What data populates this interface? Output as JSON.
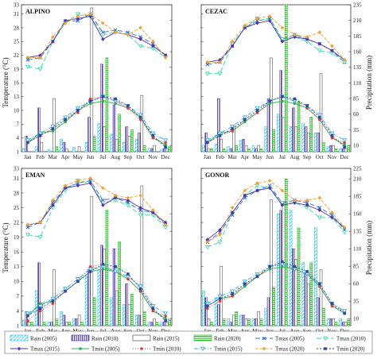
{
  "figure": {
    "y_left_label": "Temperature (°C)",
    "y_right_label": "Precipitation (mm)"
  },
  "legend": [
    {
      "label": "Rain (2005)",
      "kind": "bar",
      "color": "#29c6e6",
      "pattern": "diag"
    },
    {
      "label": "Rain (2010)",
      "kind": "bar",
      "color": "#5a3fb0",
      "pattern": "vert"
    },
    {
      "label": "Rain (2015)",
      "kind": "bar",
      "color": "#555555",
      "pattern": "solid-outline"
    },
    {
      "label": "Rain (2020)",
      "kind": "bar",
      "color": "#2dbb2d",
      "pattern": "horiz"
    },
    {
      "label": "Tmax (2005)",
      "kind": "line",
      "color": "#2f6ad0",
      "dash": "6,3",
      "marker": "x"
    },
    {
      "label": "Tmax (2010)",
      "kind": "line",
      "color": "#2fd6a8",
      "dash": "6,3",
      "marker": "tri"
    },
    {
      "label": "Tmax (2015)",
      "kind": "line",
      "color": "#5030a0",
      "dash": "",
      "marker": "diamond"
    },
    {
      "label": "Tmin (2005)",
      "kind": "line",
      "color": "#29b04a",
      "dash": "",
      "marker": "circle"
    },
    {
      "label": "Tmin (2010)",
      "kind": "line",
      "color": "#e43838",
      "dash": "1,2",
      "marker": "circle"
    },
    {
      "label": "Tmin (2015)",
      "kind": "line",
      "color": "#2aa8e6",
      "dash": "5,2,1,2",
      "marker": "tri"
    },
    {
      "label": "Tmax (2020)",
      "kind": "line",
      "color": "#f0a030",
      "dash": "4,2",
      "marker": "diamond"
    },
    {
      "label": "Tmin (2020)",
      "kind": "line",
      "color": "#2a4aa0",
      "dash": "2,2",
      "marker": "square"
    }
  ],
  "chart_data": [
    {
      "type": "bar",
      "title": "ALPINO",
      "categories": [
        "Jan",
        "Feb",
        "Mar",
        "Apr",
        "May",
        "Jun",
        "Jul",
        "Aug",
        "Sep",
        "Oct",
        "Nov",
        "Dec"
      ],
      "ylim_left": [
        1,
        33
      ],
      "left_ticks": [
        1,
        4,
        7,
        10,
        13,
        16,
        19,
        22,
        25,
        28,
        31,
        33
      ],
      "ylim_right": [
        0,
        235
      ],
      "right_ticks": [
        10,
        35,
        60,
        85,
        110,
        135,
        160,
        185,
        210,
        235
      ],
      "rain": [
        {
          "name": "Rain (2005)",
          "values": [
            5,
            8,
            3,
            20,
            7,
            15,
            45,
            28,
            15,
            20,
            5,
            3
          ]
        },
        {
          "name": "Rain (2010)",
          "values": [
            25,
            70,
            0,
            15,
            0,
            55,
            140,
            75,
            40,
            30,
            5,
            5
          ]
        },
        {
          "name": "Rain (2015)",
          "values": [
            0,
            15,
            85,
            5,
            8,
            230,
            40,
            20,
            25,
            90,
            10,
            5
          ]
        },
        {
          "name": "Rain (2020)",
          "values": [
            0,
            0,
            8,
            0,
            0,
            25,
            150,
            60,
            35,
            10,
            0,
            8
          ]
        }
      ],
      "temp": [
        {
          "name": "Tmax (2005)",
          "values": [
            21,
            21.5,
            25,
            29.5,
            29.5,
            31,
            27,
            27.5,
            27,
            26,
            24.5,
            22
          ]
        },
        {
          "name": "Tmax (2010)",
          "values": [
            19.5,
            19,
            25,
            29,
            31,
            30.5,
            26.5,
            27,
            26.5,
            24,
            23.5,
            21.5
          ]
        },
        {
          "name": "Tmax (2015)",
          "values": [
            21.5,
            22,
            25,
            29.5,
            30,
            30.5,
            25.5,
            27,
            26.5,
            25.5,
            24,
            22
          ]
        },
        {
          "name": "Tmax (2020)",
          "values": [
            21.5,
            21.5,
            26,
            29,
            30.5,
            31,
            29,
            27,
            26.5,
            28,
            25,
            21.5
          ]
        },
        {
          "name": "Tmin (2005)",
          "values": [
            3,
            5,
            5.5,
            7.5,
            10,
            11.5,
            12,
            11.5,
            10.5,
            8.5,
            4,
            2.5
          ]
        },
        {
          "name": "Tmin (2010)",
          "values": [
            3,
            4.5,
            6,
            8,
            9.5,
            12.5,
            13,
            12,
            10.5,
            8,
            4,
            3
          ]
        },
        {
          "name": "Tmin (2015)",
          "values": [
            3.5,
            5,
            6.5,
            8.5,
            10.5,
            12,
            13,
            12,
            11,
            9,
            5,
            3.5
          ]
        },
        {
          "name": "Tmin (2020)",
          "values": [
            3,
            4.5,
            6,
            8,
            10,
            12,
            13,
            12.5,
            11,
            8.5,
            4.5,
            2
          ]
        }
      ]
    },
    {
      "type": "bar",
      "title": "CEZAC",
      "categories": [
        "Jan",
        "Feb",
        "Mar",
        "Apr",
        "May",
        "Jun",
        "Jul",
        "Aug",
        "Sep",
        "Oct",
        "Nov",
        "Dec"
      ],
      "ylim_left": [
        1,
        33
      ],
      "left_ticks": [
        1,
        4,
        7,
        10,
        13,
        16,
        19,
        22,
        25,
        28,
        31,
        33
      ],
      "ylim_right": [
        0,
        235
      ],
      "right_ticks": [
        10,
        35,
        60,
        85,
        110,
        135,
        160,
        185,
        210,
        235
      ],
      "rain": [
        {
          "name": "Rain (2005)",
          "values": [
            10,
            12,
            8,
            18,
            10,
            40,
            60,
            40,
            45,
            30,
            8,
            5
          ]
        },
        {
          "name": "Rain (2010)",
          "values": [
            30,
            85,
            5,
            20,
            5,
            85,
            130,
            70,
            40,
            30,
            10,
            5
          ]
        },
        {
          "name": "Rain (2015)",
          "values": [
            5,
            20,
            40,
            10,
            10,
            150,
            55,
            40,
            30,
            125,
            10,
            5
          ]
        },
        {
          "name": "Rain (2020)",
          "values": [
            5,
            5,
            10,
            5,
            5,
            35,
            235,
            80,
            55,
            15,
            5,
            10
          ]
        }
      ],
      "temp": [
        {
          "name": "Tmax (2005)",
          "values": [
            20,
            20.5,
            24,
            28,
            29.5,
            30,
            25.5,
            26.5,
            25.5,
            24.5,
            23,
            20.5
          ]
        },
        {
          "name": "Tmax (2010)",
          "values": [
            18,
            18,
            24.5,
            28,
            30,
            29.5,
            25.5,
            26,
            25,
            23,
            22.5,
            20.5
          ]
        },
        {
          "name": "Tmax (2015)",
          "values": [
            20.5,
            21,
            24,
            28,
            29,
            29.5,
            25,
            26,
            25.5,
            24.5,
            23,
            21
          ]
        },
        {
          "name": "Tmax (2020)",
          "values": [
            20.5,
            20.5,
            25,
            28.5,
            30,
            30.5,
            28,
            26.5,
            26,
            27,
            24,
            21
          ]
        },
        {
          "name": "Tmin (2005)",
          "values": [
            3,
            5,
            5.5,
            7.5,
            9.5,
            11.5,
            12,
            11.5,
            10.5,
            8,
            4,
            2.5
          ]
        },
        {
          "name": "Tmin (2010)",
          "values": [
            3,
            4.5,
            5.5,
            8,
            9.5,
            12,
            13,
            12,
            10.5,
            8,
            4,
            3
          ]
        },
        {
          "name": "Tmin (2015)",
          "values": [
            3.5,
            5,
            6.5,
            8.5,
            10.5,
            12,
            13,
            12,
            11,
            9,
            5,
            3.5
          ]
        },
        {
          "name": "Tmin (2020)",
          "values": [
            3,
            4.5,
            6,
            8,
            10,
            12,
            13,
            12.5,
            11,
            8.5,
            4.5,
            2
          ]
        }
      ]
    },
    {
      "type": "bar",
      "title": "EMAN",
      "categories": [
        "Jan",
        "Feb",
        "Mar",
        "Apr",
        "May",
        "Jun",
        "Jul",
        "Aug",
        "Sep",
        "Oct",
        "Nov",
        "Dec"
      ],
      "ylim_left": [
        1,
        33
      ],
      "left_ticks": [
        1,
        4,
        7,
        10,
        13,
        16,
        19,
        22,
        25,
        28,
        31,
        33
      ],
      "ylim_right": [
        0,
        225
      ],
      "right_ticks": [
        10,
        35,
        60,
        85,
        110,
        135,
        160,
        185,
        210,
        225
      ],
      "rain": [
        {
          "name": "Rain (2005)",
          "values": [
            8,
            50,
            5,
            20,
            10,
            70,
            80,
            40,
            30,
            15,
            5,
            5
          ]
        },
        {
          "name": "Rain (2010)",
          "values": [
            20,
            90,
            5,
            15,
            10,
            80,
            115,
            110,
            60,
            15,
            5,
            5
          ]
        },
        {
          "name": "Rain (2015)",
          "values": [
            5,
            30,
            80,
            5,
            15,
            185,
            110,
            50,
            30,
            200,
            10,
            5
          ]
        },
        {
          "name": "Rain (2020)",
          "values": [
            5,
            5,
            10,
            5,
            5,
            40,
            165,
            120,
            45,
            20,
            5,
            10
          ]
        }
      ],
      "temp": [
        {
          "name": "Tmax (2005)",
          "values": [
            21,
            22,
            26,
            29,
            30,
            30.5,
            26.5,
            27,
            26,
            24.5,
            24,
            21.5
          ]
        },
        {
          "name": "Tmax (2010)",
          "values": [
            19.5,
            19,
            25,
            28.5,
            30.5,
            30,
            26,
            26.5,
            25.5,
            23.5,
            23.5,
            21
          ]
        },
        {
          "name": "Tmax (2015)",
          "values": [
            21.5,
            22,
            25.5,
            29,
            29.5,
            30,
            25.5,
            27,
            26.5,
            25,
            24,
            22
          ]
        },
        {
          "name": "Tmax (2020)",
          "values": [
            21.5,
            22,
            26.5,
            29.5,
            30.5,
            31,
            29,
            27.5,
            27,
            27.5,
            24.5,
            21.5
          ]
        },
        {
          "name": "Tmin (2005)",
          "values": [
            3,
            5.5,
            6,
            8,
            10,
            12,
            12.5,
            12,
            10.5,
            8,
            4,
            2.5
          ]
        },
        {
          "name": "Tmin (2010)",
          "values": [
            2,
            4,
            5.5,
            8,
            10,
            13,
            13.5,
            12,
            10.5,
            8,
            4,
            3
          ]
        },
        {
          "name": "Tmin (2015)",
          "values": [
            3.5,
            5,
            6.5,
            8.5,
            10.5,
            12.5,
            13,
            12,
            11,
            9,
            5,
            3.5
          ]
        },
        {
          "name": "Tmin (2020)",
          "values": [
            3,
            4.5,
            6,
            8,
            10,
            12,
            13.5,
            13,
            11.5,
            8.5,
            4.5,
            2
          ]
        }
      ]
    },
    {
      "type": "bar",
      "title": "GONOR",
      "categories": [
        "Jan",
        "Feb",
        "Mar",
        "Apr",
        "May",
        "Jun",
        "Jul",
        "Aug",
        "Sep",
        "Oct",
        "Nov",
        "Dec"
      ],
      "ylim_left": [
        1,
        33
      ],
      "left_ticks": [
        1,
        4,
        7,
        10,
        13,
        16,
        19,
        22,
        25,
        28,
        31,
        33
      ],
      "ylim_right": [
        0,
        225
      ],
      "right_ticks": [
        10,
        35,
        60,
        85,
        110,
        135,
        160,
        185,
        210,
        225
      ],
      "rain": [
        {
          "name": "Rain (2005)",
          "values": [
            50,
            40,
            10,
            15,
            10,
            25,
            160,
            165,
            90,
            140,
            10,
            10
          ]
        },
        {
          "name": "Rain (2010)",
          "values": [
            40,
            30,
            5,
            15,
            10,
            40,
            165,
            110,
            75,
            40,
            10,
            5
          ]
        },
        {
          "name": "Rain (2015)",
          "values": [
            10,
            85,
            15,
            10,
            20,
            180,
            175,
            95,
            60,
            80,
            10,
            5
          ]
        },
        {
          "name": "Rain (2020)",
          "values": [
            5,
            10,
            20,
            10,
            10,
            55,
            210,
            140,
            90,
            25,
            5,
            10
          ]
        }
      ],
      "temp": [
        {
          "name": "Tmax (2005)",
          "values": [
            18,
            20,
            23.5,
            27,
            28.5,
            29.5,
            26,
            26.5,
            26,
            25,
            23.5,
            20.5
          ]
        },
        {
          "name": "Tmax (2010)",
          "values": [
            17,
            18,
            24,
            27.5,
            29.5,
            29,
            26,
            26,
            25,
            23,
            23,
            20
          ]
        },
        {
          "name": "Tmax (2015)",
          "values": [
            18.5,
            20.5,
            24,
            27.5,
            28.5,
            29,
            25.5,
            26,
            25.5,
            24.5,
            23,
            21
          ]
        },
        {
          "name": "Tmax (2020)",
          "values": [
            18,
            19.5,
            25,
            28.5,
            30,
            30.5,
            28.5,
            26.5,
            26.5,
            27,
            24,
            21
          ]
        },
        {
          "name": "Tmin (2005)",
          "values": [
            5,
            6.5,
            7,
            9,
            11,
            12.5,
            13,
            12.5,
            11.5,
            9,
            5,
            3.5
          ]
        },
        {
          "name": "Tmin (2010)",
          "values": [
            4.5,
            6,
            7,
            9.5,
            11,
            13,
            13.5,
            12.5,
            11.5,
            9,
            5,
            4
          ]
        },
        {
          "name": "Tmin (2015)",
          "values": [
            5.5,
            7,
            8,
            10,
            11.5,
            13,
            13.5,
            12.5,
            11.5,
            9.5,
            5.5,
            4
          ]
        },
        {
          "name": "Tmin (2020)",
          "values": [
            5,
            6.5,
            7.5,
            9.5,
            11,
            13,
            14,
            13,
            12,
            9.5,
            5.5,
            3.5
          ]
        }
      ]
    }
  ]
}
